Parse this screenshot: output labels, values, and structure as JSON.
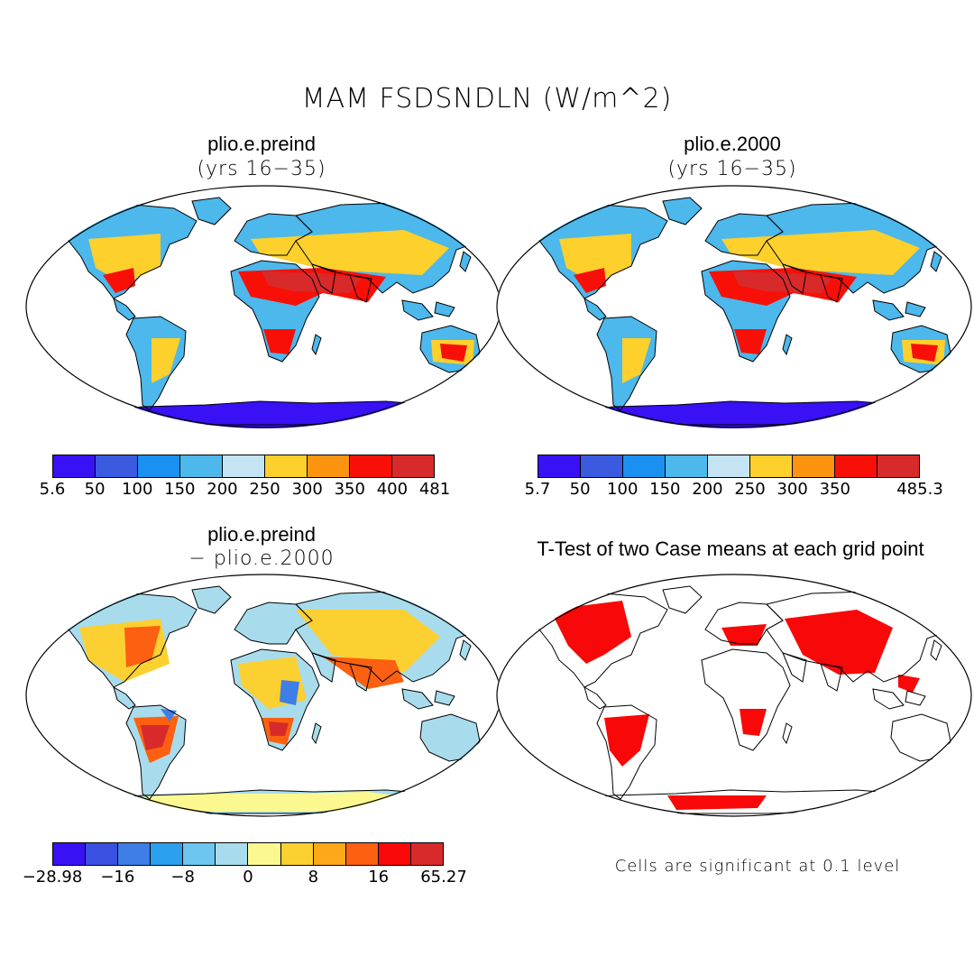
{
  "title": "MAM FSDSNDLN (W/m^2)",
  "panels": {
    "p1": {
      "title": "plio.e.preind",
      "subtitle": "(yrs 16−35)"
    },
    "p2": {
      "title": "plio.e.2000",
      "subtitle": "(yrs 16−35)"
    },
    "p3": {
      "title": "plio.e.preind",
      "subtitle": "− plio.e.2000"
    },
    "p4": {
      "title": "T-Test of two Case means at each grid point",
      "note": "Cells are significant at 0.1 level"
    }
  },
  "colorbars": {
    "cb1": {
      "colors": [
        "#3a10f5",
        "#3a5ae0",
        "#1a90f0",
        "#4cb8ec",
        "#c4e4f4",
        "#fdd02c",
        "#fc9410",
        "#f81008",
        "#d82a2a"
      ],
      "labels": [
        "5.6",
        "50",
        "100",
        "150",
        "200",
        "250",
        "300",
        "350",
        "400",
        "481"
      ]
    },
    "cb2": {
      "colors": [
        "#3a10f5",
        "#3a5ae0",
        "#1a90f0",
        "#4cb8ec",
        "#c4e4f4",
        "#fdd02c",
        "#fc9410",
        "#f81008",
        "#d82a2a"
      ],
      "labels": [
        "5.7",
        "50",
        "100",
        "150",
        "200",
        "250",
        "300",
        "350",
        "485.3"
      ],
      "label_positions": [
        0,
        1,
        2,
        3,
        4,
        5,
        6,
        7,
        9
      ]
    },
    "cb3": {
      "colors": [
        "#3a10f5",
        "#3a50e0",
        "#3e7ee6",
        "#2aa0ee",
        "#6cc6f0",
        "#a8dcec",
        "#fcf890",
        "#fcd030",
        "#fca818",
        "#fc6010",
        "#f80808",
        "#d82a2a"
      ],
      "labels": [
        "−28.98",
        "−16",
        "−8",
        "0",
        "8",
        "16",
        "65.27"
      ],
      "label_positions": [
        0,
        2,
        4,
        6,
        8,
        10,
        12
      ]
    }
  }
}
